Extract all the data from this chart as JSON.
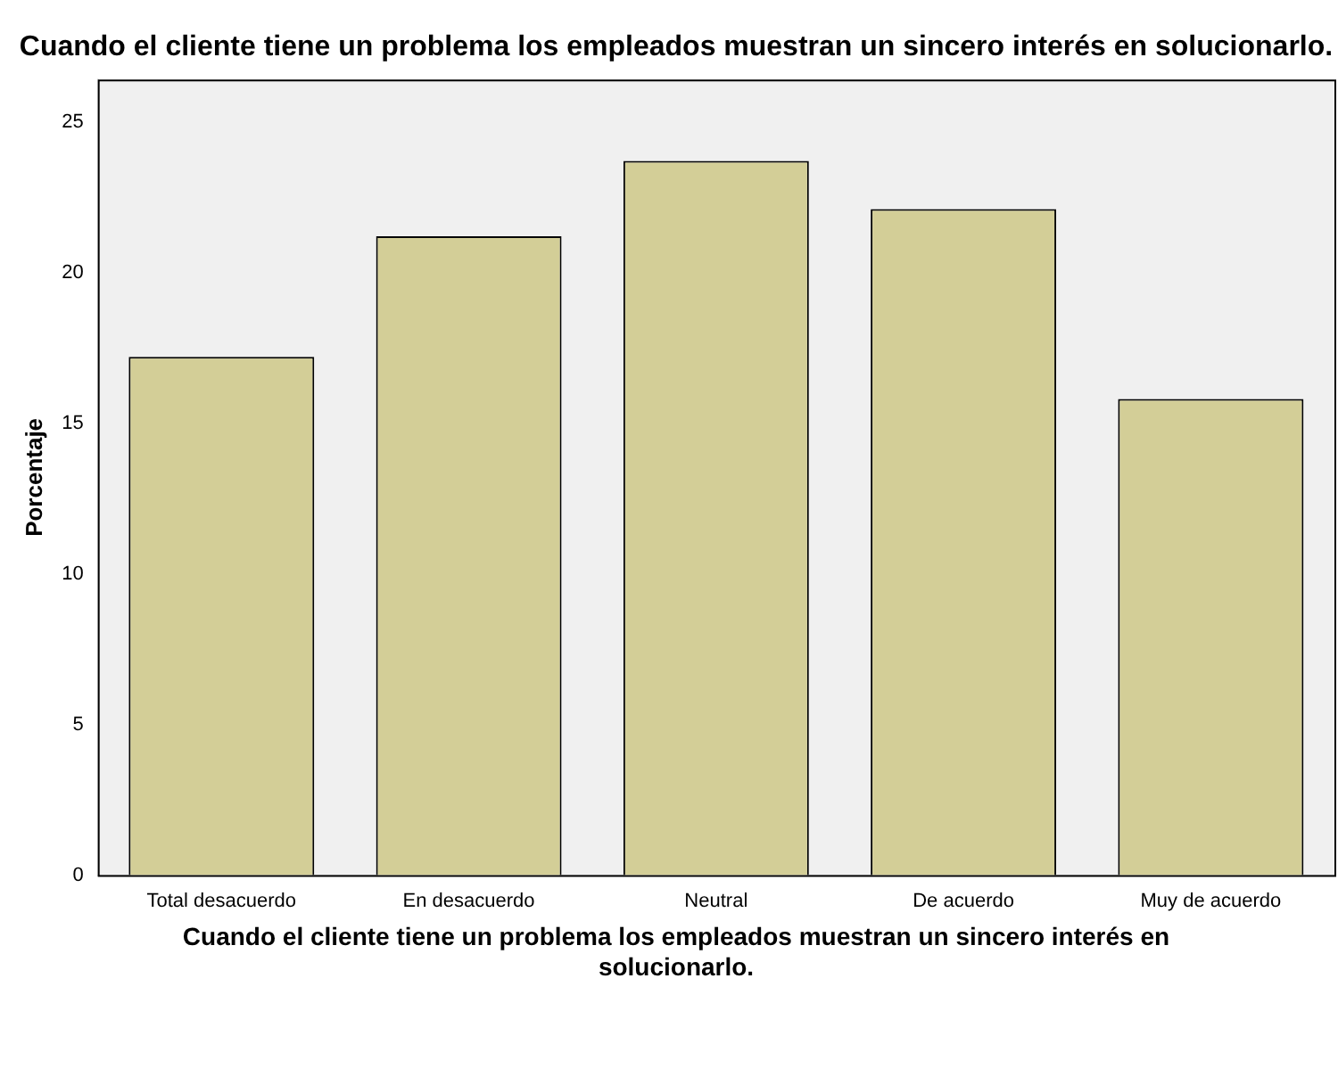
{
  "chart_data": {
    "type": "bar",
    "title": "Cuando el cliente tiene un problema los empleados muestran un sincero interés en solucionarlo.",
    "xlabel": "Cuando el cliente tiene un problema los empleados muestran un sincero interés en solucionarlo.",
    "ylabel": "Porcentaje",
    "categories": [
      "Total desacuerdo",
      "En desacuerdo",
      "Neutral",
      "De acuerdo",
      "Muy de acuerdo"
    ],
    "values": [
      17.2,
      21.2,
      23.7,
      22.1,
      15.8
    ],
    "color": "#d3ce97",
    "ylim": [
      0,
      26.4
    ],
    "yticks": [
      0,
      5,
      10,
      15,
      20,
      25
    ],
    "grid": false,
    "legend": false
  }
}
